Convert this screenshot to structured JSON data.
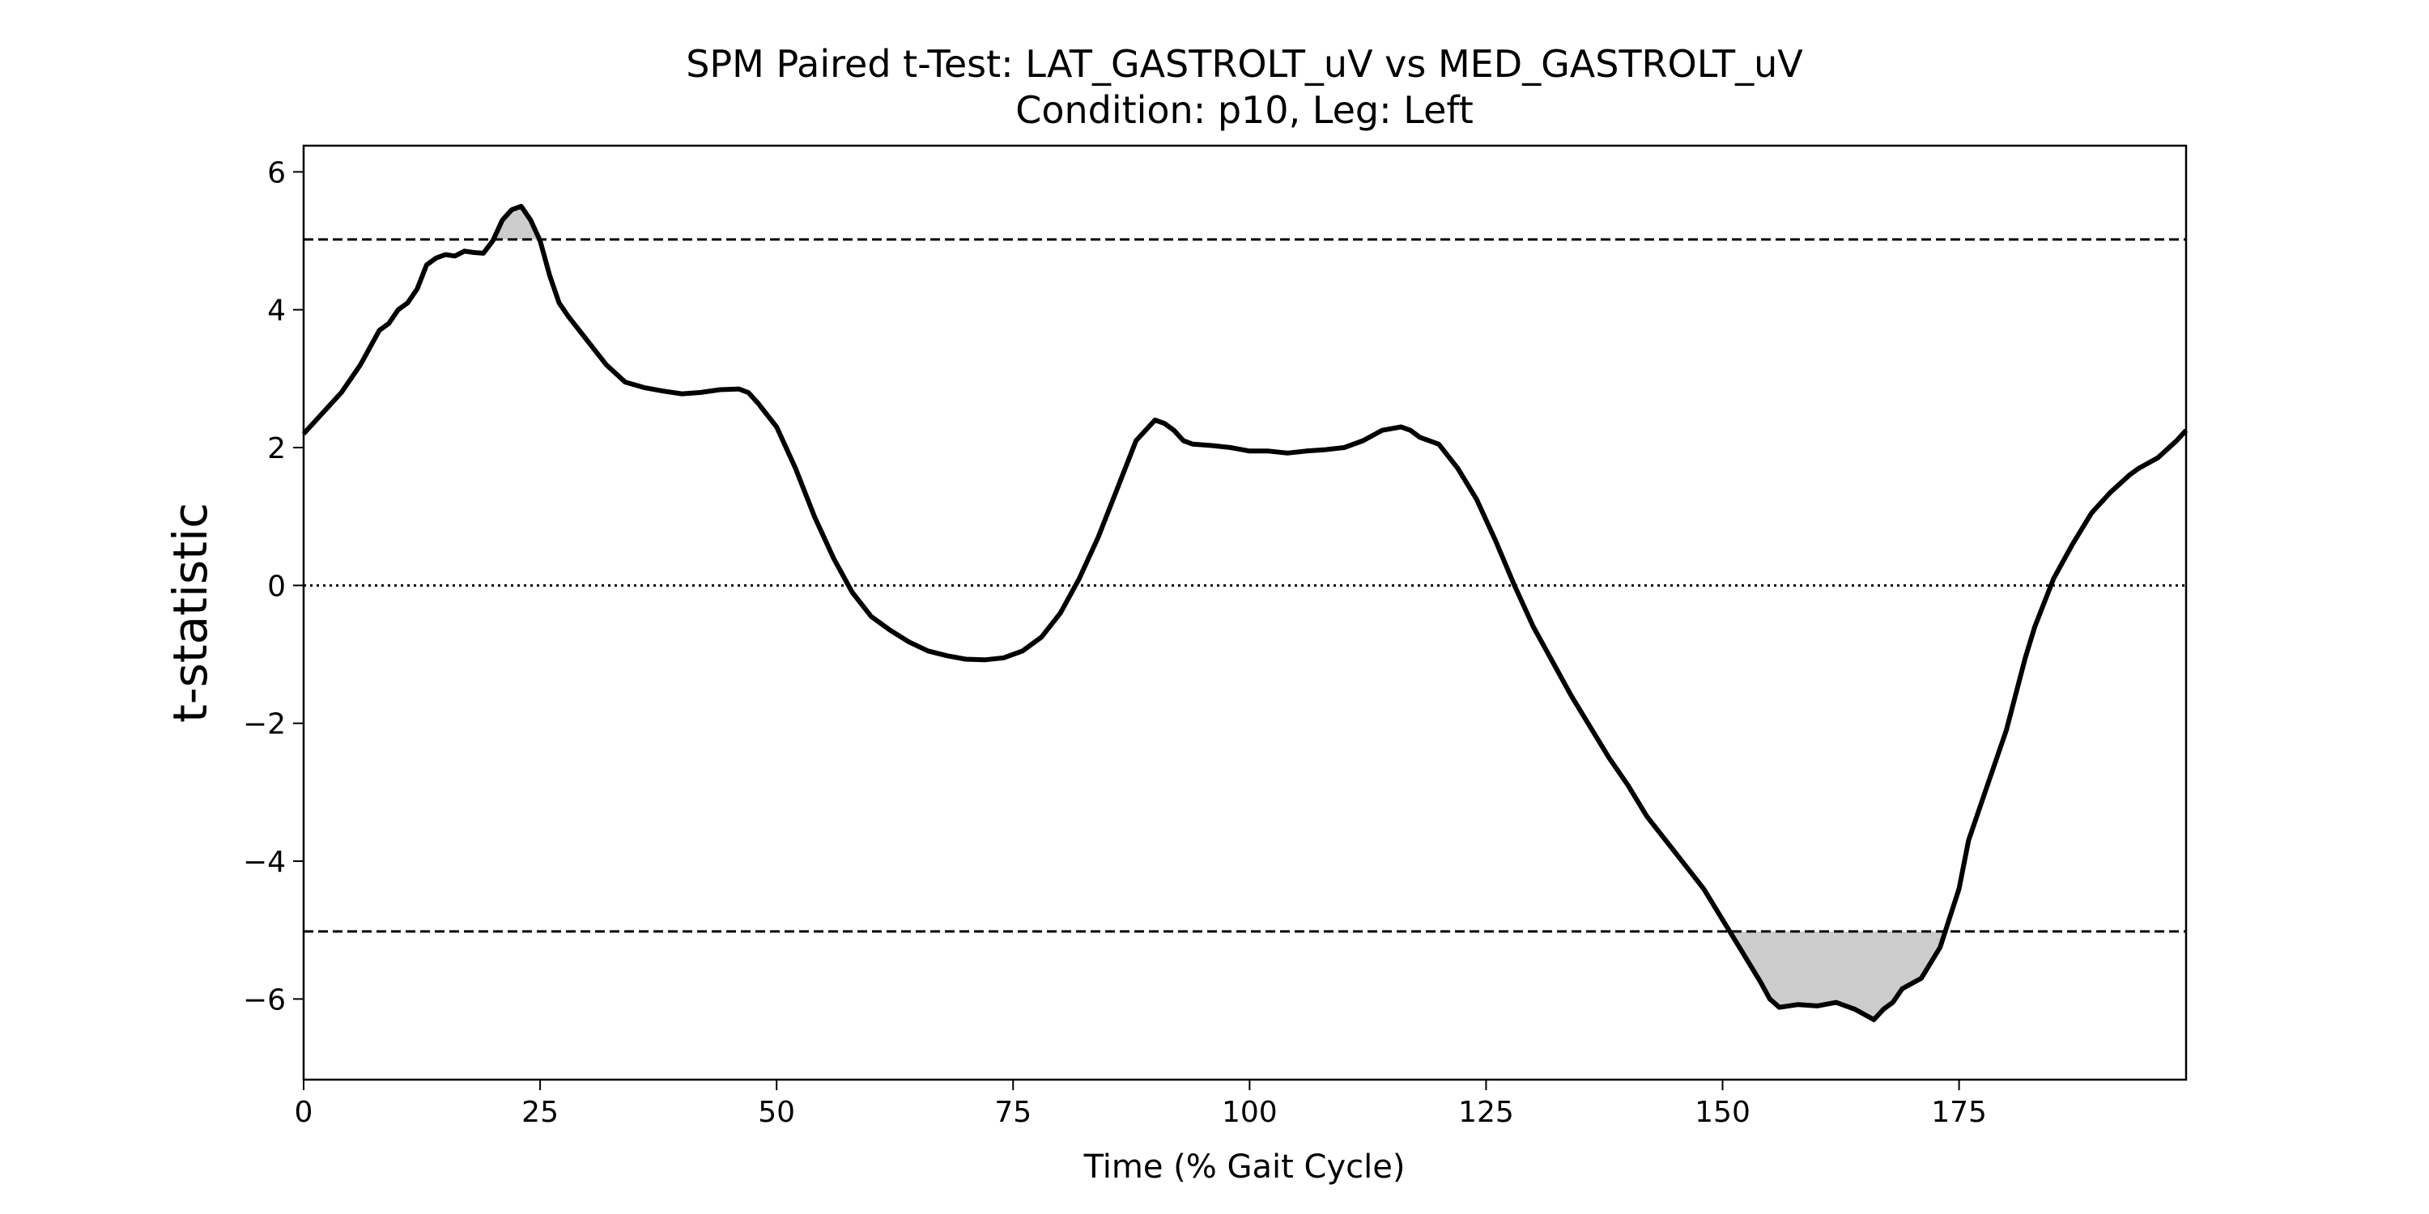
{
  "chart_data": {
    "type": "line",
    "title": "SPM Paired t-Test: LAT_GASTROLT_uV vs MED_GASTROLT_uV",
    "subtitle": "Condition: p10, Leg: Left",
    "xlabel": "Time (% Gait Cycle)",
    "ylabel": "t-statistic",
    "color": "#000000",
    "fill_color": "#cccccc",
    "thresholds": [
      5.02,
      -5.02
    ],
    "reference_line": 0,
    "xlim": [
      0,
      199
    ],
    "ylim": [
      -7.17,
      6.38
    ],
    "xticks": [
      0,
      25,
      50,
      75,
      100,
      125,
      150,
      175
    ],
    "yticks": [
      {
        "value": -6,
        "label": "−6"
      },
      {
        "value": -4,
        "label": "−4"
      },
      {
        "value": -2,
        "label": "−2"
      },
      0,
      2,
      4,
      6
    ],
    "x": [
      0,
      2,
      4,
      6,
      8,
      9,
      10,
      11,
      12,
      13,
      14,
      15,
      16,
      17,
      18,
      19,
      20,
      21,
      22,
      23,
      24,
      25,
      26,
      27,
      28,
      30,
      32,
      34,
      36,
      38,
      40,
      42,
      44,
      46,
      47,
      48,
      50,
      52,
      54,
      56,
      58,
      60,
      62,
      64,
      66,
      68,
      70,
      72,
      74,
      76,
      78,
      80,
      82,
      84,
      86,
      88,
      90,
      91,
      92,
      93,
      94,
      96,
      98,
      100,
      102,
      104,
      106,
      108,
      110,
      112,
      114,
      116,
      117,
      118,
      120,
      122,
      124,
      126,
      128,
      130,
      132,
      134,
      136,
      138,
      140,
      142,
      144,
      146,
      148,
      150,
      152,
      154,
      155,
      156,
      158,
      160,
      162,
      164,
      166,
      167,
      168,
      169,
      171,
      173,
      175,
      176,
      178,
      180,
      182,
      183,
      185,
      187,
      189,
      191,
      193,
      194,
      196,
      198,
      199
    ],
    "values": [
      2.2,
      2.5,
      2.8,
      3.2,
      3.7,
      3.8,
      4.0,
      4.1,
      4.3,
      4.65,
      4.75,
      4.8,
      4.78,
      4.85,
      4.83,
      4.82,
      5.0,
      5.3,
      5.45,
      5.5,
      5.3,
      5.0,
      4.5,
      4.1,
      3.9,
      3.55,
      3.2,
      2.95,
      2.87,
      2.82,
      2.78,
      2.8,
      2.84,
      2.85,
      2.8,
      2.65,
      2.3,
      1.7,
      1.0,
      0.4,
      -0.1,
      -0.45,
      -0.65,
      -0.82,
      -0.95,
      -1.02,
      -1.07,
      -1.08,
      -1.05,
      -0.95,
      -0.75,
      -0.4,
      0.1,
      0.7,
      1.4,
      2.1,
      2.4,
      2.35,
      2.25,
      2.1,
      2.05,
      2.03,
      2.0,
      1.95,
      1.95,
      1.92,
      1.95,
      1.97,
      2.0,
      2.1,
      2.25,
      2.3,
      2.25,
      2.15,
      2.05,
      1.7,
      1.25,
      0.65,
      0.0,
      -0.6,
      -1.1,
      -1.6,
      -2.05,
      -2.5,
      -2.9,
      -3.35,
      -3.7,
      -4.05,
      -4.4,
      -4.85,
      -5.3,
      -5.75,
      -6.0,
      -6.12,
      -6.08,
      -6.1,
      -6.05,
      -6.15,
      -6.3,
      -6.15,
      -6.05,
      -5.85,
      -5.7,
      -5.25,
      -4.4,
      -3.7,
      -2.9,
      -2.1,
      -1.05,
      -0.6,
      0.1,
      0.6,
      1.05,
      1.35,
      1.6,
      1.7,
      1.85,
      2.1,
      2.25
    ]
  }
}
